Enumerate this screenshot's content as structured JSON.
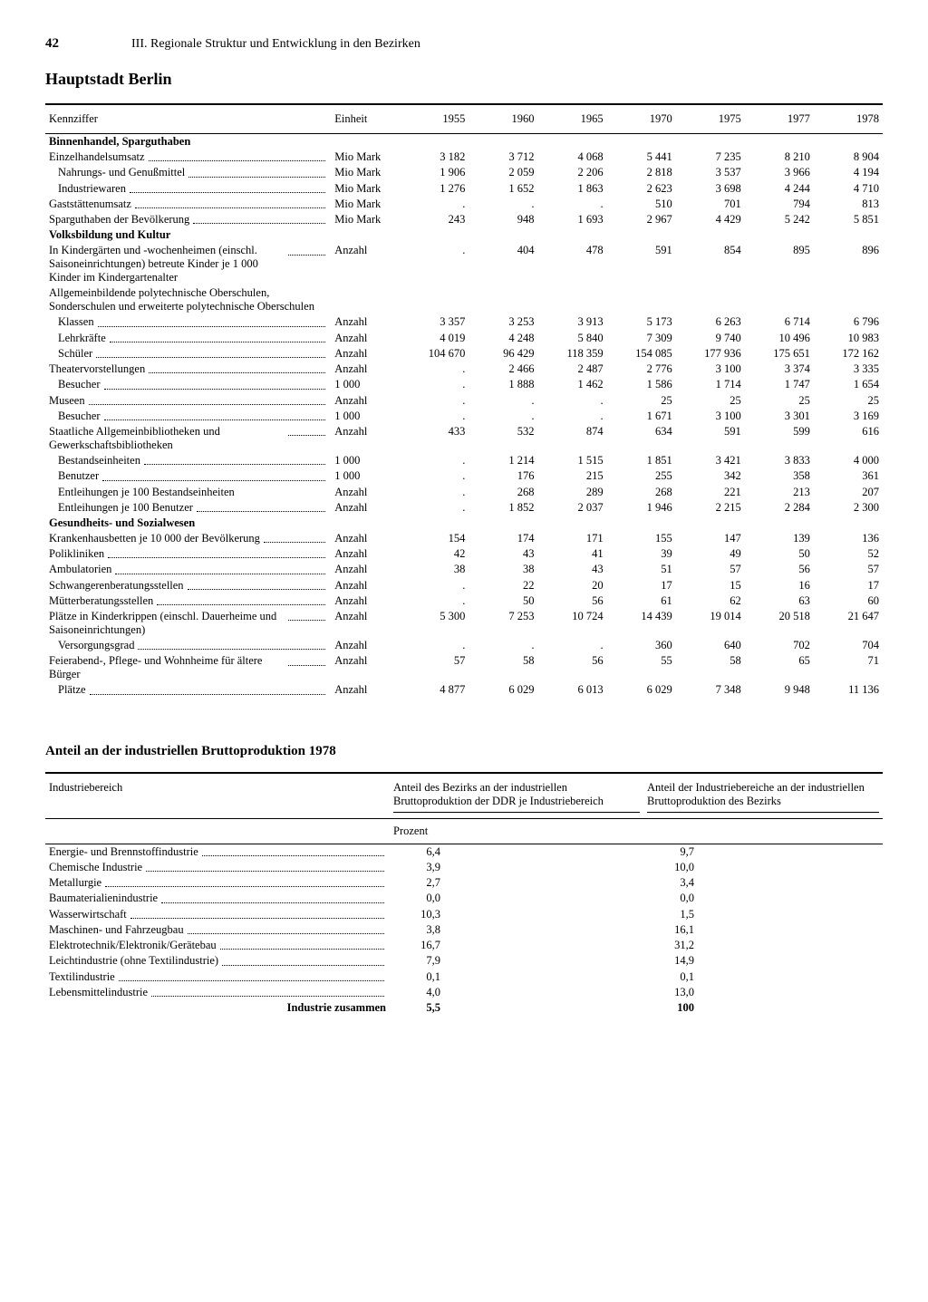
{
  "page_number": "42",
  "chapter": "III. Regionale Struktur und Entwicklung in den Bezirken",
  "region": "Hauptstadt Berlin",
  "table1": {
    "head_label": "Kennziffer",
    "head_unit": "Einheit",
    "years": [
      "1955",
      "1960",
      "1965",
      "1970",
      "1975",
      "1977",
      "1978"
    ],
    "sections": [
      {
        "title": "Binnenhandel, Sparguthaben",
        "rows": [
          {
            "label": "Einzelhandelsumsatz",
            "unit": "Mio Mark",
            "vals": [
              "3 182",
              "3 712",
              "4 068",
              "5 441",
              "7 235",
              "8 210",
              "8 904"
            ],
            "indent": 0,
            "dots": true
          },
          {
            "label": "Nahrungs- und Genußmittel",
            "unit": "Mio Mark",
            "vals": [
              "1 906",
              "2 059",
              "2 206",
              "2 818",
              "3 537",
              "3 966",
              "4 194"
            ],
            "indent": 1,
            "dots": true
          },
          {
            "label": "Industriewaren",
            "unit": "Mio Mark",
            "vals": [
              "1 276",
              "1 652",
              "1 863",
              "2 623",
              "3 698",
              "4 244",
              "4 710"
            ],
            "indent": 1,
            "dots": true
          },
          {
            "label": "Gaststättenumsatz",
            "unit": "Mio Mark",
            "vals": [
              ".",
              ".",
              ".",
              "510",
              "701",
              "794",
              "813"
            ],
            "indent": 0,
            "dots": true
          },
          {
            "label": "Sparguthaben der Bevölkerung",
            "unit": "Mio Mark",
            "vals": [
              "243",
              "948",
              "1 693",
              "2 967",
              "4 429",
              "5 242",
              "5 851"
            ],
            "indent": 0,
            "dots": true
          }
        ]
      },
      {
        "title": "Volksbildung und Kultur",
        "rows": [
          {
            "label": "In Kindergärten und -wochenheimen (einschl. Saisoneinrichtungen) betreute Kinder je 1 000 Kinder im Kindergartenalter",
            "unit": "Anzahl",
            "vals": [
              ".",
              "404",
              "478",
              "591",
              "854",
              "895",
              "896"
            ],
            "indent": 0,
            "dots": true,
            "wrap": true
          },
          {
            "label": "Allgemeinbildende polytechnische Oberschulen, Sonderschulen und erweiterte polytechnische Oberschulen",
            "unit": "",
            "vals": [
              "",
              "",
              "",
              "",
              "",
              "",
              ""
            ],
            "indent": 0,
            "dots": false,
            "wrap": true
          },
          {
            "label": "Klassen",
            "unit": "Anzahl",
            "vals": [
              "3 357",
              "3 253",
              "3 913",
              "5 173",
              "6 263",
              "6 714",
              "6 796"
            ],
            "indent": 1,
            "dots": true
          },
          {
            "label": "Lehrkräfte",
            "unit": "Anzahl",
            "vals": [
              "4 019",
              "4 248",
              "5 840",
              "7 309",
              "9 740",
              "10 496",
              "10 983"
            ],
            "indent": 1,
            "dots": true
          },
          {
            "label": "Schüler",
            "unit": "Anzahl",
            "vals": [
              "104 670",
              "96 429",
              "118 359",
              "154 085",
              "177 936",
              "175 651",
              "172 162"
            ],
            "indent": 1,
            "dots": true
          },
          {
            "label": "Theatervorstellungen",
            "unit": "Anzahl",
            "vals": [
              ".",
              "2 466",
              "2 487",
              "2 776",
              "3 100",
              "3 374",
              "3 335"
            ],
            "indent": 0,
            "dots": true
          },
          {
            "label": "Besucher",
            "unit": "1 000",
            "vals": [
              ".",
              "1 888",
              "1 462",
              "1 586",
              "1 714",
              "1 747",
              "1 654"
            ],
            "indent": 1,
            "dots": true
          },
          {
            "label": "Museen",
            "unit": "Anzahl",
            "vals": [
              ".",
              ".",
              ".",
              "25",
              "25",
              "25",
              "25"
            ],
            "indent": 0,
            "dots": true
          },
          {
            "label": "Besucher",
            "unit": "1 000",
            "vals": [
              ".",
              ".",
              ".",
              "1 671",
              "3 100",
              "3 301",
              "3 169"
            ],
            "indent": 1,
            "dots": true
          },
          {
            "label": "Staatliche Allgemeinbibliotheken und Gewerkschaftsbibliotheken",
            "unit": "Anzahl",
            "vals": [
              "433",
              "532",
              "874",
              "634",
              "591",
              "599",
              "616"
            ],
            "indent": 0,
            "dots": true,
            "wrap": true
          },
          {
            "label": "Bestandseinheiten",
            "unit": "1 000",
            "vals": [
              ".",
              "1 214",
              "1 515",
              "1 851",
              "3 421",
              "3 833",
              "4 000"
            ],
            "indent": 1,
            "dots": true
          },
          {
            "label": "Benutzer",
            "unit": "1 000",
            "vals": [
              ".",
              "176",
              "215",
              "255",
              "342",
              "358",
              "361"
            ],
            "indent": 1,
            "dots": true
          },
          {
            "label": "Entleihungen je 100 Bestandseinheiten",
            "unit": "Anzahl",
            "vals": [
              ".",
              "268",
              "289",
              "268",
              "221",
              "213",
              "207"
            ],
            "indent": 1,
            "dots": false
          },
          {
            "label": "Entleihungen je 100 Benutzer",
            "unit": "Anzahl",
            "vals": [
              ".",
              "1 852",
              "2 037",
              "1 946",
              "2 215",
              "2 284",
              "2 300"
            ],
            "indent": 1,
            "dots": true
          }
        ]
      },
      {
        "title": "Gesundheits- und Sozialwesen",
        "rows": [
          {
            "label": "Krankenhausbetten je 10 000 der Bevölkerung",
            "unit": "Anzahl",
            "vals": [
              "154",
              "174",
              "171",
              "155",
              "147",
              "139",
              "136"
            ],
            "indent": 0,
            "dots": true,
            "wrap": true
          },
          {
            "label": "Polikliniken",
            "unit": "Anzahl",
            "vals": [
              "42",
              "43",
              "41",
              "39",
              "49",
              "50",
              "52"
            ],
            "indent": 0,
            "dots": true
          },
          {
            "label": "Ambulatorien",
            "unit": "Anzahl",
            "vals": [
              "38",
              "38",
              "43",
              "51",
              "57",
              "56",
              "57"
            ],
            "indent": 0,
            "dots": true
          },
          {
            "label": "Schwangerenberatungsstellen",
            "unit": "Anzahl",
            "vals": [
              ".",
              "22",
              "20",
              "17",
              "15",
              "16",
              "17"
            ],
            "indent": 0,
            "dots": true
          },
          {
            "label": "Mütterberatungsstellen",
            "unit": "Anzahl",
            "vals": [
              ".",
              "50",
              "56",
              "61",
              "62",
              "63",
              "60"
            ],
            "indent": 0,
            "dots": true
          },
          {
            "label": "Plätze in Kinderkrippen (einschl. Dauerheime und Saisoneinrichtungen)",
            "unit": "Anzahl",
            "vals": [
              "5 300",
              "7 253",
              "10 724",
              "14 439",
              "19 014",
              "20 518",
              "21 647"
            ],
            "indent": 0,
            "dots": true,
            "wrap": true
          },
          {
            "label": "Versorgungsgrad",
            "unit": "Anzahl",
            "vals": [
              ".",
              ".",
              ".",
              "360",
              "640",
              "702",
              "704"
            ],
            "indent": 1,
            "dots": true
          },
          {
            "label": "Feierabend-, Pflege- und Wohnheime für ältere Bürger",
            "unit": "Anzahl",
            "vals": [
              "57",
              "58",
              "56",
              "55",
              "58",
              "65",
              "71"
            ],
            "indent": 0,
            "dots": true,
            "wrap": true
          },
          {
            "label": "Plätze",
            "unit": "Anzahl",
            "vals": [
              "4 877",
              "6 029",
              "6 013",
              "6 029",
              "7 348",
              "9 948",
              "11 136"
            ],
            "indent": 1,
            "dots": true
          }
        ]
      }
    ]
  },
  "table2": {
    "title": "Anteil an der industriellen Bruttoproduktion 1978",
    "head_sector": "Industriebereich",
    "head_col1": "Anteil des Bezirks an der industriellen Bruttoproduktion der DDR je Industriebereich",
    "head_col2": "Anteil der Industriebereiche an der industriellen Bruttoproduktion des Bezirks",
    "unit": "Prozent",
    "rows": [
      {
        "label": "Energie- und Brennstoffindustrie",
        "a": "6,4",
        "b": "9,7"
      },
      {
        "label": "Chemische Industrie",
        "a": "3,9",
        "b": "10,0"
      },
      {
        "label": "Metallurgie",
        "a": "2,7",
        "b": "3,4"
      },
      {
        "label": "Baumaterialienindustrie",
        "a": "0,0",
        "b": "0,0"
      },
      {
        "label": "Wasserwirtschaft",
        "a": "10,3",
        "b": "1,5"
      },
      {
        "label": "Maschinen- und Fahrzeugbau",
        "a": "3,8",
        "b": "16,1"
      },
      {
        "label": "Elektrotechnik/Elektronik/Gerätebau",
        "a": "16,7",
        "b": "31,2"
      },
      {
        "label": "Leichtindustrie (ohne Textilindustrie)",
        "a": "7,9",
        "b": "14,9"
      },
      {
        "label": "Textilindustrie",
        "a": "0,1",
        "b": "0,1"
      },
      {
        "label": "Lebensmittelindustrie",
        "a": "4,0",
        "b": "13,0"
      }
    ],
    "total_label": "Industrie zusammen",
    "total_a": "5,5",
    "total_b": "100"
  }
}
